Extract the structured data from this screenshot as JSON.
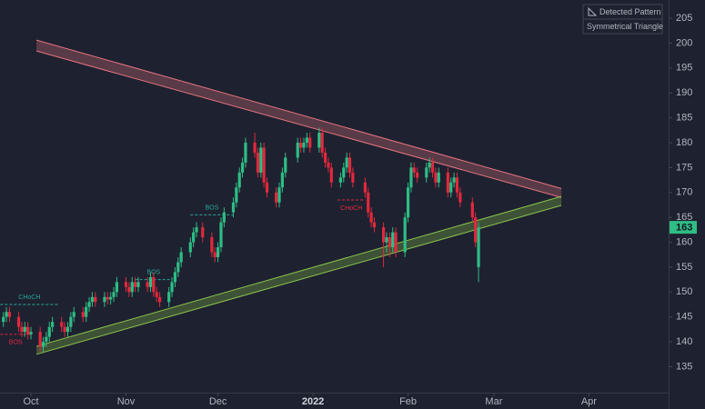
{
  "chart_data": {
    "type": "candlestick",
    "legend_title": "Detected Pattern",
    "pattern_name": "Symmetrical Triangle",
    "up_color": "#2ebd85",
    "down_color": "#e0293d",
    "x": [
      -9,
      -8,
      -7,
      -4,
      -3,
      -2,
      -1,
      0,
      3,
      4,
      5,
      6,
      7,
      10,
      11,
      12,
      13,
      14,
      17,
      18,
      19,
      20,
      21,
      24,
      25,
      26,
      27,
      28,
      31,
      32,
      33,
      34,
      35,
      38,
      39,
      40,
      41,
      42,
      45,
      46,
      47,
      48,
      49,
      52,
      53,
      54,
      56,
      59,
      60,
      61,
      62,
      63,
      66,
      67,
      68,
      69,
      70,
      73,
      74,
      75,
      76,
      77,
      80,
      81,
      82,
      83,
      87,
      88,
      89,
      90,
      91,
      94,
      95,
      96,
      97,
      98,
      101,
      102,
      103,
      104,
      105,
      109,
      110,
      111,
      112,
      115,
      116,
      117,
      118,
      119,
      122,
      123,
      124,
      125,
      126,
      129,
      130,
      131,
      132,
      133,
      136,
      137,
      138,
      139,
      140,
      144,
      145,
      146
    ],
    "open": [
      144,
      145,
      146,
      145,
      143,
      142,
      143,
      141.5,
      142,
      139,
      140,
      141,
      143,
      144,
      143,
      142,
      143,
      145,
      146,
      145,
      147,
      148,
      149,
      148,
      149,
      148.5,
      149,
      150,
      152,
      151,
      150,
      152,
      151,
      152,
      151,
      153,
      150,
      149,
      148,
      150,
      152,
      154,
      156,
      158,
      160,
      162,
      163,
      161,
      158,
      157,
      159,
      164,
      166,
      168,
      171,
      174,
      176,
      180,
      178,
      174,
      179,
      172,
      170,
      168,
      171,
      174,
      177,
      180,
      179,
      180,
      181,
      179,
      182,
      178,
      176,
      175,
      172,
      173,
      175,
      177,
      174,
      172,
      170,
      166,
      164,
      163,
      160,
      161,
      159,
      162,
      158,
      165,
      171,
      175,
      174,
      173,
      175,
      176,
      174,
      172,
      174,
      170,
      172,
      173,
      170,
      168,
      165,
      155
    ],
    "high": [
      146,
      147,
      147,
      146,
      144,
      144,
      144,
      143,
      143,
      141,
      142,
      144,
      145,
      145,
      144,
      144,
      146,
      147,
      147,
      148,
      149,
      150,
      150,
      150,
      150,
      150,
      151,
      153,
      153,
      152,
      153,
      153,
      153,
      153,
      154,
      154,
      151,
      150,
      151,
      153,
      155,
      157,
      159,
      161,
      163,
      164,
      164,
      162,
      159,
      160,
      165,
      167,
      169,
      172,
      175,
      177,
      181,
      182,
      179,
      180,
      180,
      173,
      171,
      172,
      175,
      178,
      181,
      181,
      181,
      182,
      182,
      183,
      183,
      179,
      177,
      176,
      174,
      176,
      178,
      178,
      175,
      173,
      171,
      167,
      165,
      164,
      162,
      162,
      163,
      163,
      166,
      172,
      176,
      176,
      175,
      176,
      177,
      177,
      175,
      175,
      175,
      173,
      174,
      174,
      171,
      169,
      166,
      164
    ],
    "low": [
      143,
      144,
      144,
      142,
      141,
      141,
      140.5,
      140.5,
      138,
      138,
      139,
      140,
      142,
      142,
      141,
      141,
      142,
      144,
      144,
      144,
      146,
      147,
      147,
      147,
      147.5,
      147.5,
      148,
      149,
      150,
      149,
      149,
      150,
      150,
      150,
      150,
      149,
      148,
      147,
      147,
      149,
      151,
      153,
      155,
      157,
      159,
      161,
      160,
      157,
      156,
      156,
      158,
      163,
      165,
      167,
      170,
      173,
      175,
      177,
      173,
      173,
      171,
      169,
      167,
      167,
      170,
      173,
      176,
      178,
      178,
      179,
      178,
      178,
      177,
      175,
      174,
      171,
      171,
      172,
      174,
      173,
      171,
      169,
      165,
      163,
      162,
      155,
      158,
      157,
      158,
      157,
      157,
      164,
      170,
      173,
      172,
      172,
      174,
      173,
      171,
      171,
      169,
      169,
      171,
      169,
      167,
      164,
      159,
      152
    ],
    "close": [
      145,
      146,
      145,
      143,
      142,
      143,
      141.5,
      142,
      139,
      140,
      141,
      143,
      144,
      143,
      142,
      143,
      145,
      146,
      145,
      147,
      148,
      149,
      148,
      149,
      148.5,
      149,
      150,
      152,
      151,
      150,
      152,
      151,
      152,
      151,
      153,
      150,
      149,
      148,
      150,
      152,
      154,
      156,
      158,
      160,
      162,
      163,
      161,
      158,
      157,
      159,
      164,
      166,
      168,
      171,
      174,
      176,
      180,
      178,
      174,
      179,
      172,
      170,
      168,
      171,
      174,
      177,
      180,
      179,
      180,
      181,
      179,
      182,
      178,
      176,
      175,
      172,
      173,
      175,
      177,
      174,
      172,
      170,
      166,
      164,
      163,
      160,
      161,
      159,
      162,
      158,
      165,
      171,
      175,
      174,
      173,
      175,
      176,
      174,
      172,
      174,
      170,
      172,
      173,
      170,
      168,
      165,
      160,
      163
    ],
    "bands": [
      {
        "color": "#e5737f",
        "x": [
          1.8,
          173
        ],
        "top": [
          200.6,
          170.8
        ],
        "bottom": [
          198.4,
          169
        ]
      },
      {
        "color": "#8bc34a",
        "x": [
          1.8,
          173
        ],
        "top": [
          139.1,
          169.2
        ],
        "bottom": [
          137.5,
          167.4
        ]
      }
    ],
    "annotations": [
      {
        "label": "CHoCH",
        "color": "#26a69a",
        "value": 147.5,
        "x": [
          -10,
          9
        ]
      },
      {
        "label": "BOS",
        "color": "#e0293d",
        "value": 141.5,
        "x": [
          -10,
          0
        ]
      },
      {
        "label": "BOS",
        "color": "#26a69a",
        "value": 152.5,
        "x": [
          34,
          46
        ]
      },
      {
        "label": "BOS",
        "color": "#26a69a",
        "value": 165.5,
        "x": [
          52,
          66
        ]
      },
      {
        "label": "CHoCH",
        "color": "#e0293d",
        "value": 168.5,
        "x": [
          100,
          109
        ]
      }
    ],
    "xlim": [
      -10.1,
      208
    ],
    "ylim": [
      129.8,
      208.65
    ],
    "yticks": [
      135,
      140,
      145,
      150,
      155,
      160,
      165,
      170,
      175,
      180,
      185,
      190,
      195,
      200,
      205
    ],
    "xticks": [
      {
        "value": 0,
        "label": "Oct"
      },
      {
        "value": 31,
        "label": "Nov"
      },
      {
        "value": 61,
        "label": "Dec"
      },
      {
        "value": 92,
        "label": "2022"
      },
      {
        "value": 123,
        "label": "Feb"
      },
      {
        "value": 151,
        "label": "Mar"
      },
      {
        "value": 182,
        "label": "Apr"
      }
    ]
  }
}
